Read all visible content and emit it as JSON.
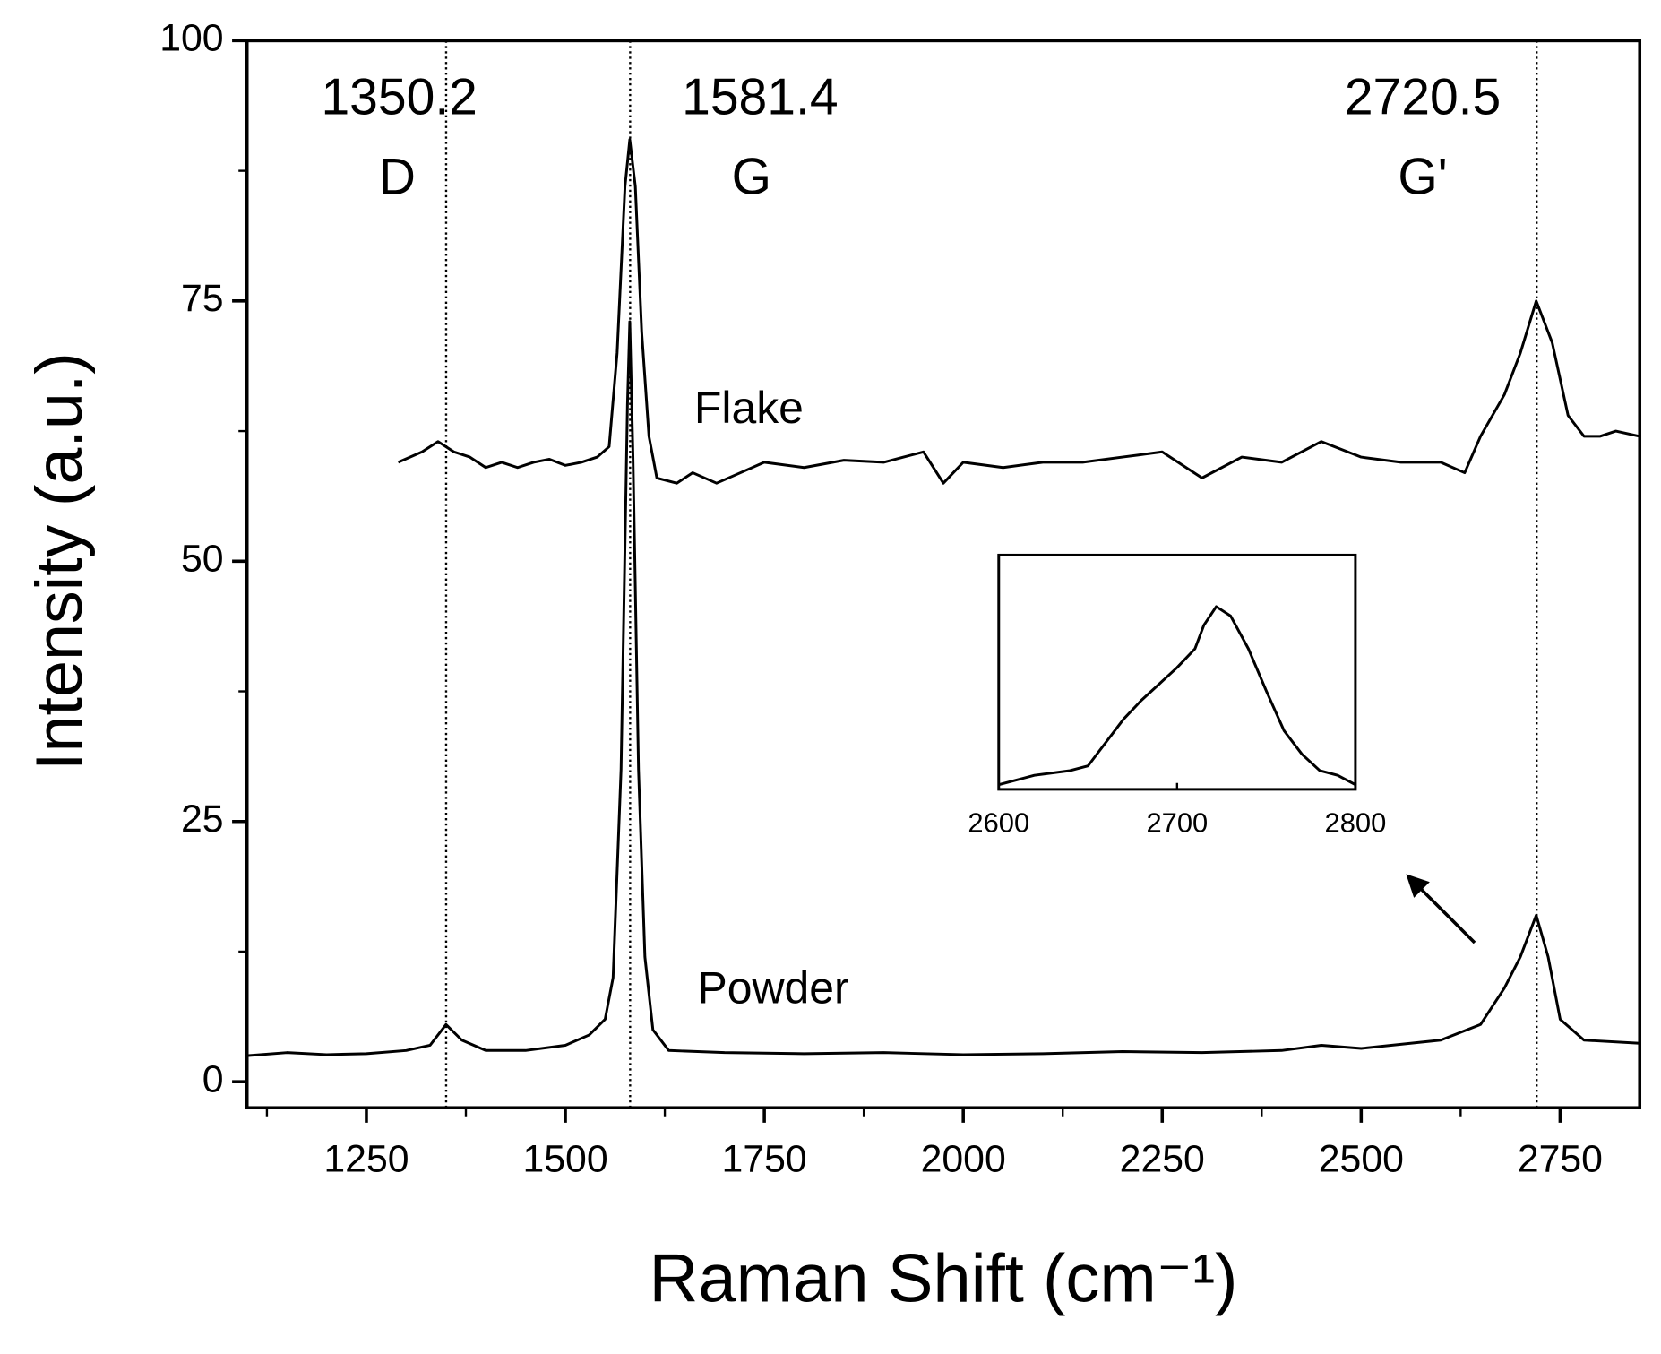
{
  "chart_data": {
    "type": "line",
    "xlabel": "Raman Shift (cm⁻¹)",
    "ylabel": "Intensity (a.u.)",
    "xlim": [
      1100,
      2850
    ],
    "xticks": [
      1250,
      1500,
      1750,
      2000,
      2250,
      2500,
      2750
    ],
    "xticks_minor": [
      1125,
      1375,
      1625,
      1875,
      2125,
      2375,
      2625
    ],
    "ylim": [
      -2.5,
      100
    ],
    "yticks": [
      0,
      25,
      50,
      75,
      100
    ],
    "yticks_minor": [
      12.5,
      37.5,
      62.5,
      87.5
    ],
    "peaks": [
      {
        "position": 1350.2,
        "label": "D"
      },
      {
        "position": 1581.4,
        "label": "G"
      },
      {
        "position": 2720.5,
        "label": "G'"
      }
    ],
    "series": [
      {
        "name": "Flake",
        "color": "#000000",
        "x": [
          1290,
          1320,
          1340,
          1360,
          1380,
          1400,
          1420,
          1440,
          1460,
          1480,
          1500,
          1520,
          1540,
          1555,
          1565,
          1575,
          1581,
          1588,
          1596,
          1605,
          1615,
          1640,
          1660,
          1690,
          1720,
          1750,
          1800,
          1850,
          1900,
          1950,
          1975,
          2000,
          2050,
          2100,
          2150,
          2200,
          2250,
          2300,
          2350,
          2400,
          2450,
          2500,
          2550,
          2600,
          2630,
          2650,
          2680,
          2700,
          2720,
          2740,
          2760,
          2780,
          2800,
          2820,
          2850
        ],
        "values": [
          59.5,
          60.5,
          61.5,
          60.5,
          60,
          59,
          59.5,
          59,
          59.5,
          59.8,
          59.2,
          59.5,
          60,
          61,
          70,
          86,
          90.5,
          86,
          72,
          62,
          58,
          57.5,
          58.5,
          57.5,
          58.5,
          59.5,
          59,
          59.7,
          59.5,
          60.5,
          57.5,
          59.5,
          59,
          59.5,
          59.5,
          60,
          60.5,
          58,
          60,
          59.5,
          61.5,
          60,
          59.5,
          59.5,
          58.5,
          62,
          66,
          70,
          75,
          71,
          64,
          62,
          62,
          62.5,
          62
        ]
      },
      {
        "name": "Powder",
        "color": "#000000",
        "x": [
          1100,
          1150,
          1200,
          1250,
          1300,
          1330,
          1350,
          1370,
          1400,
          1450,
          1500,
          1530,
          1550,
          1560,
          1570,
          1578,
          1581,
          1585,
          1592,
          1600,
          1610,
          1630,
          1700,
          1800,
          1900,
          2000,
          2100,
          2200,
          2300,
          2400,
          2450,
          2500,
          2600,
          2650,
          2680,
          2700,
          2720,
          2735,
          2750,
          2780,
          2850
        ],
        "values": [
          2.5,
          2.8,
          2.6,
          2.7,
          3,
          3.5,
          5.5,
          4,
          3,
          3,
          3.5,
          4.5,
          6,
          10,
          30,
          65,
          73,
          60,
          30,
          12,
          5,
          3,
          2.8,
          2.7,
          2.8,
          2.6,
          2.7,
          2.9,
          2.8,
          3,
          3.5,
          3.2,
          4,
          5.5,
          9,
          12,
          16,
          12,
          6,
          4,
          3.7
        ]
      }
    ],
    "inset": {
      "xlim": [
        2600,
        2800
      ],
      "xticks": [
        2600,
        2700,
        2800
      ],
      "ylim": [
        0,
        100
      ],
      "x": [
        2600,
        2610,
        2620,
        2640,
        2650,
        2660,
        2670,
        2680,
        2690,
        2700,
        2710,
        2715,
        2722,
        2730,
        2740,
        2750,
        2760,
        2770,
        2780,
        2790,
        2800
      ],
      "values": [
        2,
        4,
        6,
        8,
        10,
        20,
        30,
        38,
        45,
        52,
        60,
        70,
        78,
        74,
        60,
        42,
        25,
        15,
        8,
        6,
        2
      ]
    }
  }
}
